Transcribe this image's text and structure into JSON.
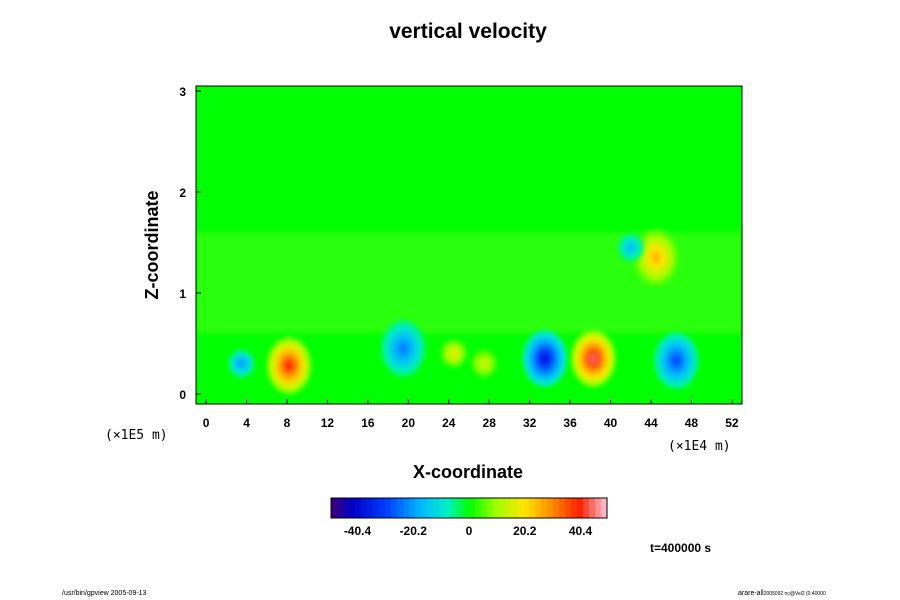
{
  "chart_data": {
    "type": "heatmap",
    "title": "vertical velocity",
    "xlabel": "X-coordinate",
    "ylabel": "Z-coordinate",
    "x_scale_label": "(×1E4 m)",
    "y_scale_label": "(×1E5 m)",
    "xlim": [
      -1,
      53
    ],
    "ylim": [
      -0.1,
      3.05
    ],
    "x_ticks": [
      0,
      4,
      8,
      12,
      16,
      20,
      24,
      28,
      32,
      36,
      40,
      44,
      48,
      52
    ],
    "y_ticks": [
      0,
      1,
      2,
      3
    ],
    "colorbar": {
      "range": [
        -50,
        50
      ],
      "ticks": [
        "-40.4",
        "-20.2",
        "0",
        "20.2",
        "40.4"
      ],
      "tick_values": [
        -40.4,
        -20.2,
        0,
        20.2,
        40.4
      ]
    },
    "features": [
      {
        "x": 3.5,
        "z": 0.3,
        "value": -25
      },
      {
        "x": 8.2,
        "z": 0.28,
        "value": 47
      },
      {
        "x": 19.5,
        "z": 0.45,
        "value": -28
      },
      {
        "x": 24.5,
        "z": 0.4,
        "value": 22
      },
      {
        "x": 27.5,
        "z": 0.3,
        "value": 18
      },
      {
        "x": 33.5,
        "z": 0.35,
        "value": -44
      },
      {
        "x": 38.3,
        "z": 0.35,
        "value": 52
      },
      {
        "x": 46.5,
        "z": 0.33,
        "value": -34
      },
      {
        "x": 44.5,
        "z": 1.35,
        "value": 30
      },
      {
        "x": 42,
        "z": 1.45,
        "value": -20
      }
    ],
    "time_label": "t=400000 s"
  },
  "footer": {
    "left": "/usr/bin/gpview 2005-09-13",
    "right": "arare-all",
    "right_sub": "2005092 nc@Vel2 (0:40000"
  }
}
